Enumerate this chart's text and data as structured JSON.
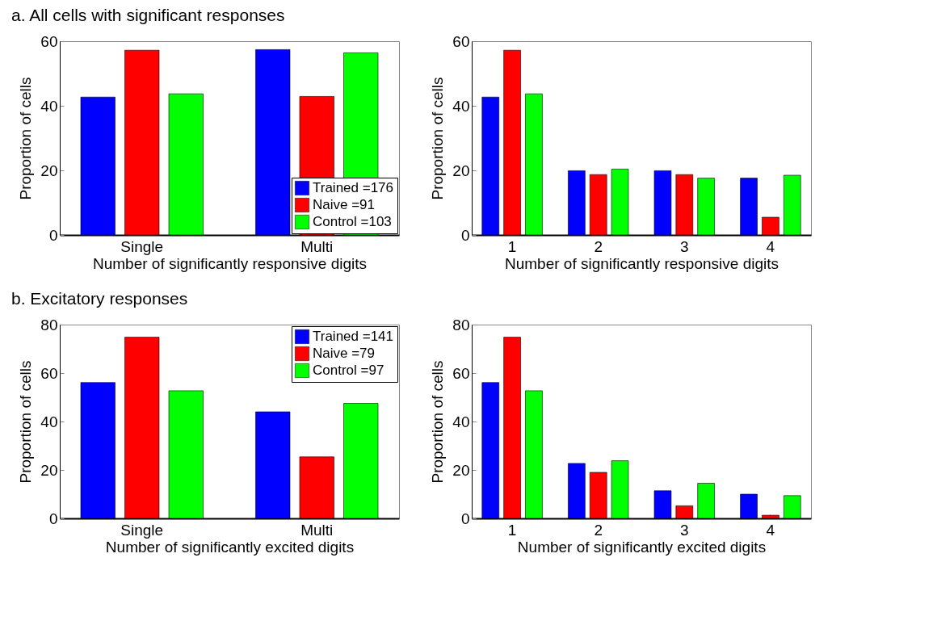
{
  "chart_data": [
    {
      "type": "bar",
      "title": "a. All cells with significant responses",
      "categories": [
        "Single",
        "Multi"
      ],
      "xlabel": "Number of significantly responsive digits",
      "ylabel": "Proportion of cells",
      "ylim": [
        0,
        60
      ],
      "yticks": [
        0,
        20,
        40,
        60
      ],
      "grid": false,
      "legend": "bottom right",
      "series": [
        {
          "name": "Trained =176",
          "color": "#0000ff",
          "values": [
            42.7,
            57.4
          ]
        },
        {
          "name": "Naive =91",
          "color": "#ff0000",
          "values": [
            57.2,
            42.9
          ]
        },
        {
          "name": "Control =103",
          "color": "#00ff00",
          "values": [
            43.7,
            56.4
          ]
        }
      ]
    },
    {
      "type": "bar",
      "categories": [
        "1",
        "2",
        "3",
        "4"
      ],
      "xlabel": "Number of significantly responsive digits",
      "ylabel": "Proportion of cells",
      "ylim": [
        0,
        60
      ],
      "yticks": [
        0,
        20,
        40,
        60
      ],
      "grid": false,
      "series": [
        {
          "color": "#0000ff",
          "values": [
            42.7,
            19.9,
            19.9,
            17.6
          ]
        },
        {
          "color": "#ff0000",
          "values": [
            57.2,
            18.7,
            18.7,
            5.5
          ]
        },
        {
          "color": "#00ff00",
          "values": [
            43.7,
            20.4,
            17.6,
            18.5
          ]
        }
      ]
    },
    {
      "type": "bar",
      "title": "b. Excitatory responses",
      "categories": [
        "Single",
        "Multi"
      ],
      "xlabel": "Number of significantly excited digits",
      "ylabel": "Proportion of cells",
      "ylim": [
        0,
        80
      ],
      "yticks": [
        0,
        20,
        40,
        60,
        80
      ],
      "grid": false,
      "legend": "top right",
      "series": [
        {
          "name": "Trained =141",
          "color": "#0000ff",
          "values": [
            56.1,
            44.0
          ]
        },
        {
          "name": "Naive =79",
          "color": "#ff0000",
          "values": [
            74.8,
            25.4
          ]
        },
        {
          "name": "Control =97",
          "color": "#00ff00",
          "values": [
            52.7,
            47.5
          ]
        }
      ]
    },
    {
      "type": "bar",
      "categories": [
        "1",
        "2",
        "3",
        "4"
      ],
      "xlabel": "Number of significantly excited digits",
      "ylabel": "Proportion of cells",
      "ylim": [
        0,
        80
      ],
      "yticks": [
        0,
        20,
        40,
        60,
        80
      ],
      "grid": false,
      "series": [
        {
          "color": "#0000ff",
          "values": [
            56.1,
            22.7,
            11.4,
            10.0
          ]
        },
        {
          "color": "#ff0000",
          "values": [
            74.8,
            19.0,
            5.2,
            1.3
          ]
        },
        {
          "color": "#00ff00",
          "values": [
            52.7,
            23.8,
            14.5,
            9.4
          ]
        }
      ]
    }
  ]
}
